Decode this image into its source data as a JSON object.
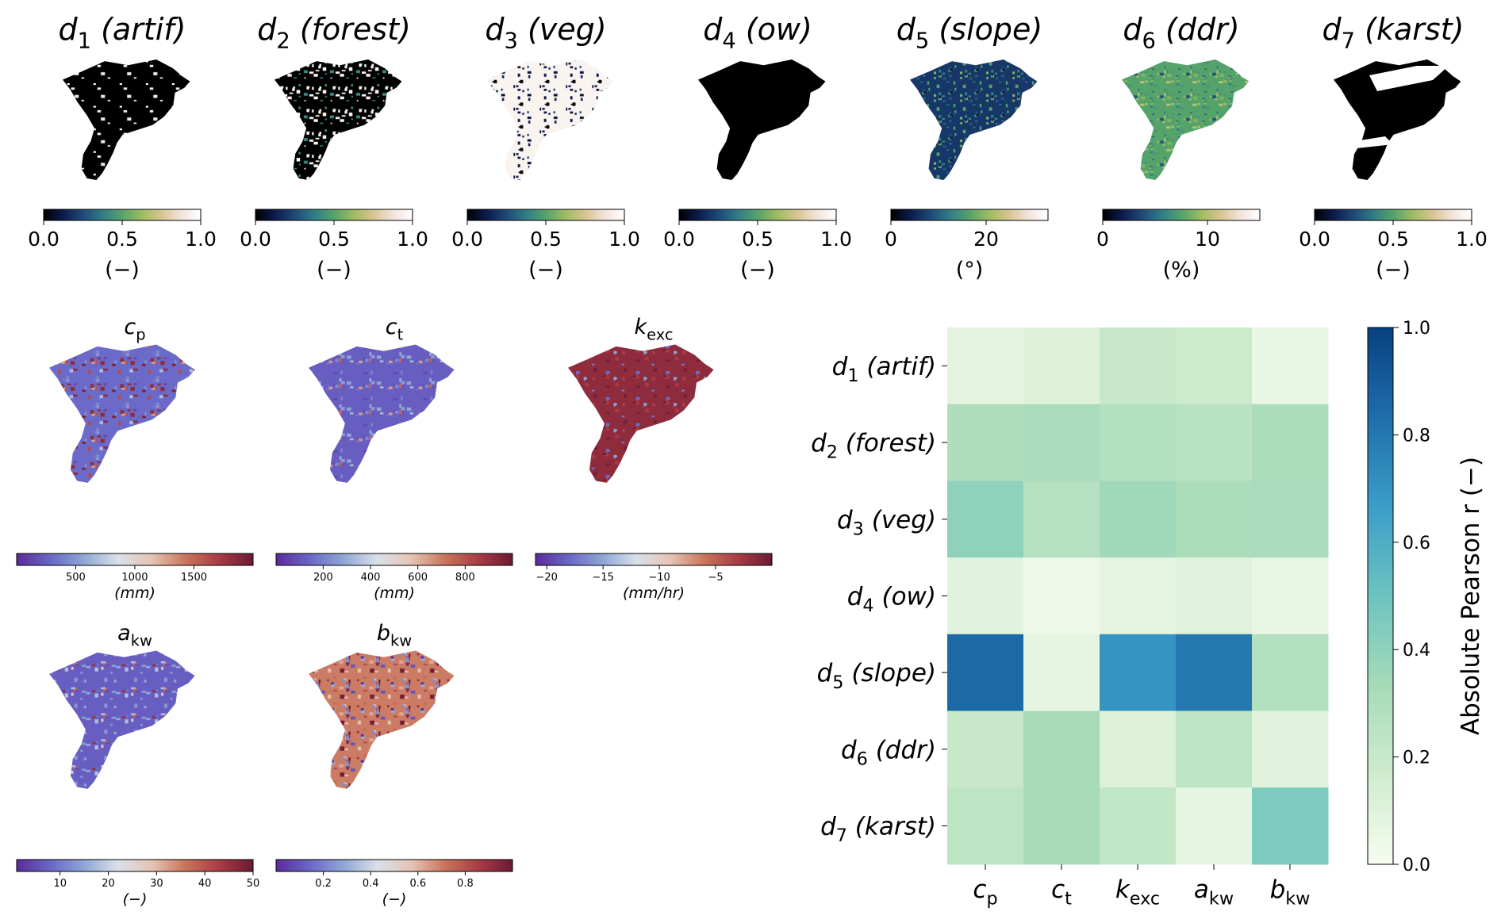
{
  "figure": {
    "colormaps": {
      "sequential": [
        "#000000",
        "#0d1b4d",
        "#1d4a7a",
        "#2f7d86",
        "#55a36a",
        "#9dbc5e",
        "#d8c48f",
        "#f2e3dc",
        "#ffffff"
      ],
      "diverging": [
        "#5b2a9a",
        "#6a67c7",
        "#8fa7d6",
        "#d9e0ea",
        "#e6c4b4",
        "#c9745c",
        "#a93b44",
        "#6b1a33"
      ],
      "heat": [
        "#f7fcf0",
        "#cfeccd",
        "#a6dbb8",
        "#6cc3c0",
        "#3b9dc8",
        "#1f6eaa",
        "#084081"
      ]
    },
    "descriptor_maps": [
      {
        "base": "d",
        "sub": "1",
        "name": "(artif)",
        "ticks": [
          "0.0",
          "0.5",
          "1.0"
        ],
        "unit": "(−)",
        "texture": "mostly-dark"
      },
      {
        "base": "d",
        "sub": "2",
        "name": "(forest)",
        "ticks": [
          "0.0",
          "0.5",
          "1.0"
        ],
        "unit": "(−)",
        "texture": "mixed"
      },
      {
        "base": "d",
        "sub": "3",
        "name": "(veg)",
        "ticks": [
          "0.0",
          "0.5",
          "1.0"
        ],
        "unit": "(−)",
        "texture": "mostly-light"
      },
      {
        "base": "d",
        "sub": "4",
        "name": "(ow)",
        "ticks": [
          "0.0",
          "0.5",
          "1.0"
        ],
        "unit": "(−)",
        "texture": "dark"
      },
      {
        "base": "d",
        "sub": "5",
        "name": "(slope)",
        "ticks": [
          "0",
          "20"
        ],
        "unit": "(°)",
        "texture": "blue"
      },
      {
        "base": "d",
        "sub": "6",
        "name": "(ddr)",
        "ticks": [
          "0",
          "10"
        ],
        "unit": "(%)",
        "texture": "green"
      },
      {
        "base": "d",
        "sub": "7",
        "name": "(karst)",
        "ticks": [
          "0.0",
          "0.5",
          "1.0"
        ],
        "unit": "(−)",
        "texture": "karst"
      }
    ],
    "parameter_maps": [
      {
        "base": "c",
        "sub": "p",
        "ticks": [
          "500",
          "1000",
          "1500"
        ],
        "unit": "(mm)",
        "texture": "purple-red"
      },
      {
        "base": "c",
        "sub": "t",
        "ticks": [
          "200",
          "400",
          "600",
          "800"
        ],
        "unit": "(mm)",
        "texture": "purple"
      },
      {
        "base": "k",
        "sub": "exc",
        "ticks": [
          "−20",
          "−15",
          "−10",
          "−5"
        ],
        "unit": "(mm/hr)",
        "texture": "red"
      },
      {
        "base": "a",
        "sub": "kw",
        "ticks": [
          "10",
          "20",
          "30",
          "40",
          "50"
        ],
        "unit": "(−)",
        "texture": "purple"
      },
      {
        "base": "b",
        "sub": "kw",
        "ticks": [
          "0.2",
          "0.4",
          "0.6",
          "0.8"
        ],
        "unit": "(−)",
        "texture": "mixed-red"
      }
    ]
  },
  "chart_data": {
    "type": "heatmap",
    "title": "",
    "colorbar_label": "Absolute Pearson r (−)",
    "colorbar_ticks": [
      "0.0",
      "0.2",
      "0.4",
      "0.6",
      "0.8",
      "1.0"
    ],
    "colorbar_range": [
      0,
      1
    ],
    "rows": [
      {
        "base": "d",
        "sub": "1",
        "name": "(artif)"
      },
      {
        "base": "d",
        "sub": "2",
        "name": "(forest)"
      },
      {
        "base": "d",
        "sub": "3",
        "name": "(veg)"
      },
      {
        "base": "d",
        "sub": "4",
        "name": "(ow)"
      },
      {
        "base": "d",
        "sub": "5",
        "name": "(slope)"
      },
      {
        "base": "d",
        "sub": "6",
        "name": "(ddr)"
      },
      {
        "base": "d",
        "sub": "7",
        "name": "(karst)"
      }
    ],
    "columns": [
      {
        "base": "c",
        "sub": "p"
      },
      {
        "base": "c",
        "sub": "t"
      },
      {
        "base": "k",
        "sub": "exc"
      },
      {
        "base": "a",
        "sub": "kw"
      },
      {
        "base": "b",
        "sub": "kw"
      }
    ],
    "values": [
      [
        0.08,
        0.11,
        0.2,
        0.18,
        0.06
      ],
      [
        0.3,
        0.32,
        0.28,
        0.26,
        0.31
      ],
      [
        0.4,
        0.27,
        0.35,
        0.31,
        0.32
      ],
      [
        0.09,
        0.04,
        0.07,
        0.1,
        0.06
      ],
      [
        0.85,
        0.07,
        0.7,
        0.8,
        0.28
      ],
      [
        0.2,
        0.33,
        0.11,
        0.24,
        0.09
      ],
      [
        0.24,
        0.33,
        0.22,
        0.07,
        0.45
      ]
    ]
  }
}
